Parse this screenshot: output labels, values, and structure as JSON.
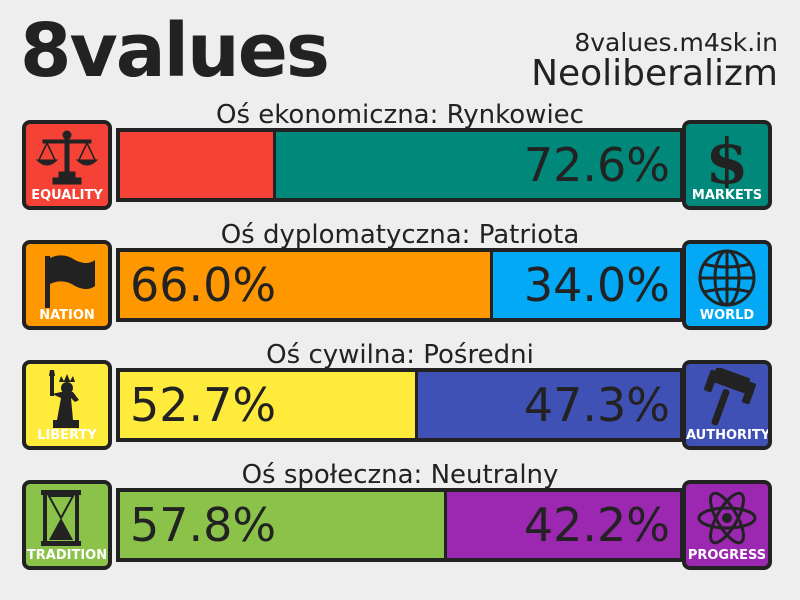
{
  "header": {
    "brand": "8values",
    "site": "8values.m4sk.in",
    "ideology": "Neoliberalizm"
  },
  "axes": [
    {
      "title": "Oś ekonomiczna: Rynkowiec",
      "left": {
        "label": "EQUALITY",
        "icon": "scales-icon",
        "color": "#f44336",
        "value": 27.4,
        "text": ""
      },
      "right": {
        "label": "MARKETS",
        "icon": "dollar-icon",
        "color": "#00897b",
        "value": 72.6,
        "text": "72.6%"
      }
    },
    {
      "title": "Oś dyplomatyczna: Patriota",
      "left": {
        "label": "NATION",
        "icon": "flag-icon",
        "color": "#ff9800",
        "value": 66.0,
        "text": "66.0%"
      },
      "right": {
        "label": "WORLD",
        "icon": "globe-icon",
        "color": "#03a9f4",
        "value": 34.0,
        "text": "34.0%"
      }
    },
    {
      "title": "Oś cywilna: Pośredni",
      "left": {
        "label": "LIBERTY",
        "icon": "statue-of-liberty-icon",
        "color": "#ffeb3b",
        "value": 52.7,
        "text": "52.7%"
      },
      "right": {
        "label": "AUTHORITY",
        "icon": "gavel-icon",
        "color": "#3f51b5",
        "value": 47.3,
        "text": "47.3%"
      }
    },
    {
      "title": "Oś społeczna: Neutralny",
      "left": {
        "label": "TRADITION",
        "icon": "hourglass-icon",
        "color": "#8bc34a",
        "value": 57.8,
        "text": "57.8%"
      },
      "right": {
        "label": "PROGRESS",
        "icon": "atom-icon",
        "color": "#9c27b0",
        "value": 42.2,
        "text": "42.2%"
      }
    }
  ]
}
